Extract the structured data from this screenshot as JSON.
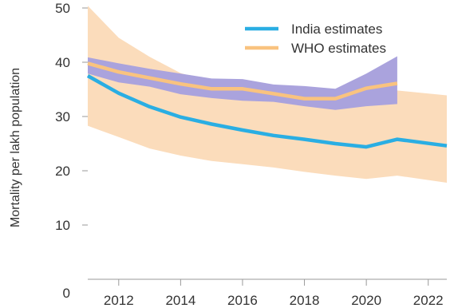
{
  "chart_data": {
    "type": "line",
    "title": "",
    "xlabel": "",
    "ylabel": "Mortality per lakh population",
    "xlim": [
      2011,
      2022.6
    ],
    "ylim": [
      0,
      50
    ],
    "x_ticks": [
      2012,
      2014,
      2016,
      2018,
      2020,
      2022
    ],
    "y_ticks": [
      0,
      10,
      20,
      30,
      40,
      50
    ],
    "legend_position": "top-right",
    "grid": false,
    "series": [
      {
        "name": "India estimates",
        "color": "#2aaee3",
        "x": [
          2011,
          2012,
          2013,
          2014,
          2015,
          2016,
          2017,
          2018,
          2019,
          2020,
          2021,
          2022.6
        ],
        "values": [
          37.5,
          34.3,
          31.8,
          29.9,
          28.6,
          27.5,
          26.5,
          25.8,
          25.0,
          24.4,
          25.8,
          24.6
        ]
      },
      {
        "name": "WHO estimates",
        "color": "#f9c37f",
        "x": [
          2011,
          2012,
          2013,
          2014,
          2015,
          2016,
          2017,
          2018,
          2019,
          2020,
          2021
        ],
        "values": [
          39.8,
          38.2,
          37.1,
          36.0,
          35.1,
          35.1,
          34.2,
          33.3,
          33.3,
          35.2,
          36.1
        ]
      }
    ],
    "bands": [
      {
        "color": "#fbdcbb",
        "x": [
          2011,
          2012,
          2013,
          2014,
          2015,
          2016,
          2017,
          2018,
          2019,
          2020,
          2021,
          2022.6
        ],
        "upper": [
          50.4,
          44.5,
          41.0,
          38.0,
          36.4,
          35.7,
          35.1,
          34.8,
          34.3,
          34.6,
          34.8,
          33.9
        ],
        "lower": [
          28.3,
          26.2,
          24.1,
          22.8,
          21.8,
          21.2,
          20.6,
          19.8,
          19.1,
          18.5,
          19.1,
          17.8
        ]
      },
      {
        "color": "#aaa3dd",
        "x": [
          2011,
          2012,
          2013,
          2014,
          2015,
          2016,
          2017,
          2018,
          2019,
          2020,
          2021
        ],
        "upper": [
          40.9,
          39.8,
          38.8,
          37.9,
          37.0,
          36.9,
          35.9,
          35.6,
          35.1,
          37.9,
          41.1
        ],
        "lower": [
          37.9,
          36.3,
          35.5,
          34.1,
          33.4,
          32.9,
          32.7,
          31.9,
          31.2,
          31.9,
          32.3
        ]
      }
    ]
  }
}
